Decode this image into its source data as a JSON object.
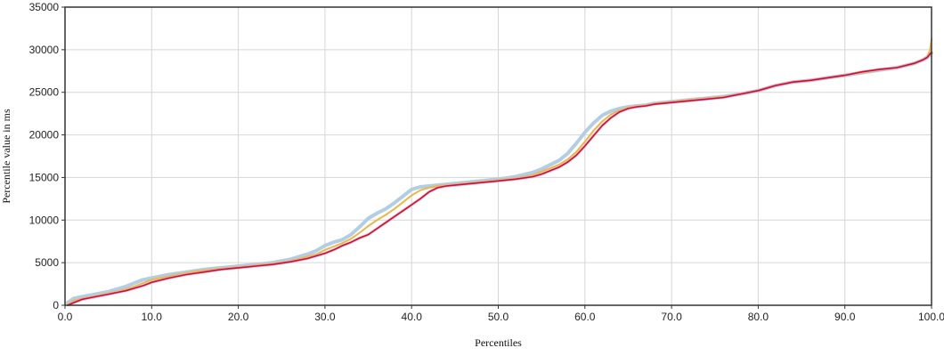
{
  "chart_data": {
    "type": "line",
    "xlabel": "Percentiles",
    "ylabel": "Percentile value in ms",
    "xlim": [
      0,
      100
    ],
    "ylim": [
      0,
      35000
    ],
    "x_ticks": [
      "0.0",
      "10.0",
      "20.0",
      "30.0",
      "40.0",
      "50.0",
      "60.0",
      "70.0",
      "80.0",
      "90.0",
      "100.0"
    ],
    "y_ticks": [
      "0",
      "5000",
      "10000",
      "15000",
      "20000",
      "25000",
      "30000",
      "35000"
    ],
    "grid": true,
    "legend": "none",
    "series": [
      {
        "color": "#b3cde3",
        "x": [
          0.3,
          1,
          2,
          3,
          4,
          5,
          6,
          7,
          8,
          9,
          10,
          12,
          14,
          16,
          18,
          20,
          22,
          24,
          26,
          28,
          29,
          30,
          31,
          32,
          33,
          34,
          35,
          36,
          37,
          38,
          39,
          40,
          41,
          42,
          43,
          44,
          46,
          48,
          50,
          52,
          54,
          55,
          56,
          57,
          58,
          59,
          60,
          61,
          62,
          63,
          64,
          65,
          66,
          67,
          68,
          70,
          72,
          74,
          76,
          78,
          80,
          82,
          84,
          86,
          88,
          90,
          92,
          94,
          96,
          98,
          99,
          99.5,
          100
        ],
        "y": [
          300,
          800,
          1000,
          1200,
          1400,
          1600,
          1900,
          2200,
          2600,
          3000,
          3200,
          3600,
          3900,
          4200,
          4400,
          4600,
          4800,
          5000,
          5400,
          6000,
          6400,
          7000,
          7400,
          7700,
          8300,
          9200,
          10200,
          10800,
          11300,
          12000,
          12800,
          13600,
          13900,
          14000,
          14100,
          14200,
          14400,
          14600,
          14800,
          15100,
          15600,
          16000,
          16500,
          17000,
          17800,
          19000,
          20300,
          21400,
          22300,
          22800,
          23100,
          23300,
          23400,
          23500,
          23700,
          23900,
          24100,
          24300,
          24500,
          24800,
          25200,
          25800,
          26200,
          26400,
          26700,
          27000,
          27300,
          27600,
          27900,
          28400,
          28800,
          29100,
          29600
        ]
      },
      {
        "color": "#e8b84a",
        "x": [
          0.3,
          1,
          2,
          3,
          4,
          5,
          6,
          7,
          8,
          9,
          10,
          12,
          14,
          16,
          18,
          20,
          22,
          24,
          26,
          28,
          29,
          30,
          31,
          32,
          33,
          34,
          35,
          36,
          37,
          38,
          39,
          40,
          41,
          42,
          43,
          44,
          46,
          48,
          50,
          52,
          54,
          55,
          56,
          57,
          58,
          59,
          60,
          61,
          62,
          63,
          64,
          65,
          66,
          67,
          68,
          70,
          72,
          74,
          76,
          78,
          80,
          82,
          84,
          86,
          88,
          90,
          92,
          94,
          96,
          98,
          99,
          99.5,
          99.8,
          100
        ],
        "y": [
          100,
          500,
          800,
          1000,
          1200,
          1400,
          1600,
          1900,
          2200,
          2600,
          3000,
          3400,
          3800,
          4100,
          4300,
          4500,
          4700,
          4900,
          5200,
          5700,
          6000,
          6500,
          6900,
          7300,
          7800,
          8500,
          9300,
          10000,
          10600,
          11300,
          12100,
          12900,
          13500,
          13800,
          14000,
          14100,
          14300,
          14500,
          14700,
          14900,
          15300,
          15700,
          16100,
          16500,
          17100,
          18000,
          19200,
          20500,
          21600,
          22400,
          22900,
          23200,
          23400,
          23500,
          23700,
          23900,
          24100,
          24300,
          24500,
          24800,
          25200,
          25800,
          26200,
          26400,
          26700,
          27000,
          27300,
          27600,
          27900,
          28400,
          28800,
          29200,
          29900,
          31200
        ]
      },
      {
        "color": "#c8102e",
        "x": [
          0.3,
          1,
          2,
          3,
          4,
          5,
          6,
          7,
          8,
          9,
          10,
          12,
          14,
          16,
          18,
          20,
          22,
          24,
          26,
          28,
          29,
          30,
          31,
          32,
          33,
          34,
          35,
          36,
          37,
          38,
          39,
          40,
          41,
          42,
          43,
          44,
          46,
          48,
          50,
          52,
          54,
          55,
          56,
          57,
          58,
          59,
          60,
          61,
          62,
          63,
          64,
          65,
          66,
          67,
          68,
          70,
          72,
          74,
          76,
          78,
          80,
          82,
          84,
          86,
          88,
          90,
          92,
          94,
          96,
          98,
          99,
          99.5,
          100
        ],
        "y": [
          0,
          300,
          700,
          900,
          1100,
          1300,
          1500,
          1700,
          2000,
          2300,
          2700,
          3200,
          3600,
          3900,
          4200,
          4400,
          4600,
          4800,
          5100,
          5500,
          5800,
          6100,
          6500,
          7000,
          7400,
          7900,
          8300,
          9000,
          9700,
          10400,
          11100,
          11800,
          12500,
          13300,
          13800,
          14000,
          14200,
          14400,
          14600,
          14800,
          15100,
          15400,
          15800,
          16200,
          16800,
          17600,
          18700,
          19900,
          21100,
          22000,
          22700,
          23100,
          23300,
          23400,
          23600,
          23800,
          24000,
          24200,
          24400,
          24800,
          25200,
          25800,
          26200,
          26400,
          26700,
          27000,
          27400,
          27700,
          27900,
          28400,
          28800,
          29100,
          29700
        ]
      }
    ]
  }
}
